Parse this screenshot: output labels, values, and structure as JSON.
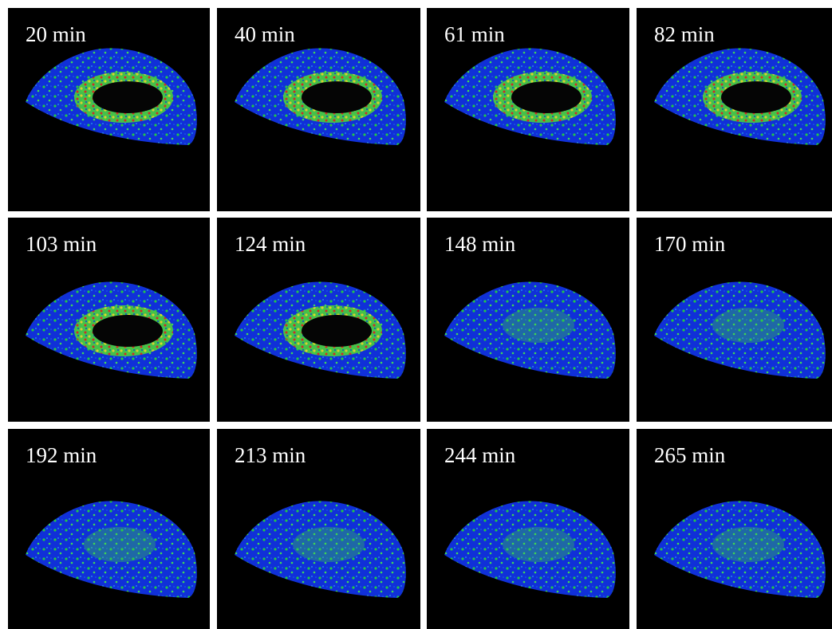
{
  "panels": [
    {
      "label": "20 min"
    },
    {
      "label": "40 min"
    },
    {
      "label": "61 min"
    },
    {
      "label": "82 min"
    },
    {
      "label": "103 min"
    },
    {
      "label": "124 min"
    },
    {
      "label": "148 min"
    },
    {
      "label": "170 min"
    },
    {
      "label": "192 min"
    },
    {
      "label": "213 min"
    },
    {
      "label": "244 min"
    },
    {
      "label": "265 min"
    }
  ]
}
